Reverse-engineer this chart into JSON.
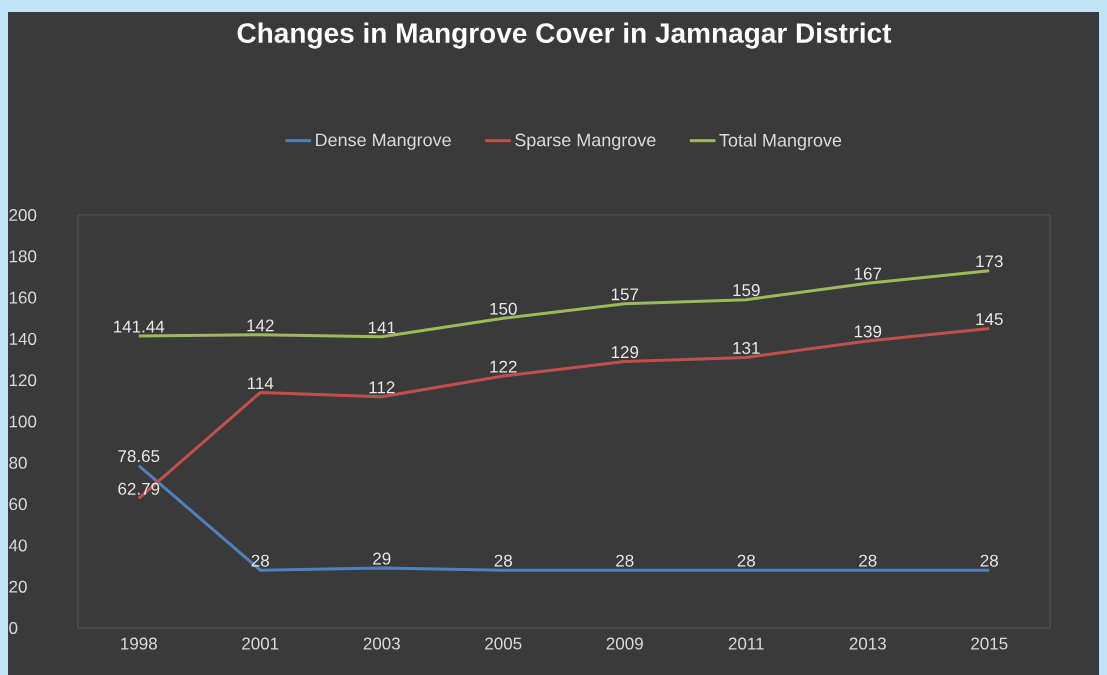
{
  "chart_data": {
    "type": "line",
    "title": "Changes in Mangrove Cover in Jamnagar District",
    "categories": [
      "1998",
      "2001",
      "2003",
      "2005",
      "2009",
      "2011",
      "2013",
      "2015"
    ],
    "series": [
      {
        "name": "Dense Mangrove",
        "color": "#4f81bd",
        "values": [
          78.65,
          28,
          29,
          28,
          28,
          28,
          28,
          28
        ]
      },
      {
        "name": "Sparse Mangrove",
        "color": "#c0504d",
        "values": [
          62.79,
          114,
          112,
          122,
          129,
          131,
          139,
          145
        ]
      },
      {
        "name": "Total Mangrove",
        "color": "#9bbb59",
        "values": [
          141.44,
          142,
          141,
          150,
          157,
          159,
          167,
          173
        ]
      }
    ],
    "ylim": [
      0,
      200
    ],
    "yticks": [
      0,
      20,
      40,
      60,
      80,
      100,
      120,
      140,
      160,
      180,
      200
    ],
    "legend": "top",
    "data_labels": true,
    "grid": false,
    "marker": "none",
    "line_style": "solid"
  }
}
